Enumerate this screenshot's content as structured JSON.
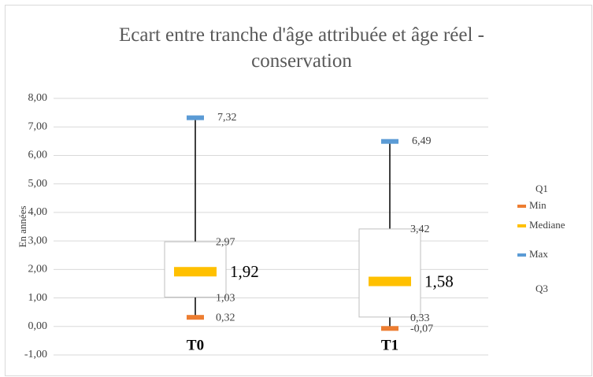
{
  "chart_data": {
    "type": "box",
    "title": "Ecart entre tranche d'âge attribuée et âge réel - conservation",
    "y_label": "En années",
    "categories": [
      "T0",
      "T1"
    ],
    "series": [
      {
        "name": "Q1",
        "values": [
          1.03,
          0.33
        ],
        "value_labels": [
          "1,03",
          "0,33"
        ]
      },
      {
        "name": "Min",
        "color": "#ed7d31",
        "values": [
          0.32,
          -0.07
        ],
        "value_labels": [
          "0,32",
          "-0,07"
        ]
      },
      {
        "name": "Mediane",
        "color": "#ffc000",
        "values": [
          1.92,
          1.58
        ],
        "value_labels": [
          "1,92",
          "1,58"
        ]
      },
      {
        "name": "Max",
        "color": "#5b9bd5",
        "values": [
          7.32,
          6.49
        ],
        "value_labels": [
          "7,32",
          "6,49"
        ]
      },
      {
        "name": "Q3",
        "values": [
          2.97,
          3.42
        ],
        "value_labels": [
          "2,97",
          "3,42"
        ]
      }
    ],
    "ylim": [
      -1,
      8
    ],
    "yticks": [
      {
        "value": -1,
        "label": "-1,00"
      },
      {
        "value": 0,
        "label": "0,00"
      },
      {
        "value": 1,
        "label": "1,00"
      },
      {
        "value": 2,
        "label": "2,00"
      },
      {
        "value": 3,
        "label": "3,00"
      },
      {
        "value": 4,
        "label": "4,00"
      },
      {
        "value": 5,
        "label": "5,00"
      },
      {
        "value": 6,
        "label": "6,00"
      },
      {
        "value": 7,
        "label": "7,00"
      },
      {
        "value": 8,
        "label": "8,00"
      }
    ],
    "grid": true,
    "legend": "right"
  }
}
